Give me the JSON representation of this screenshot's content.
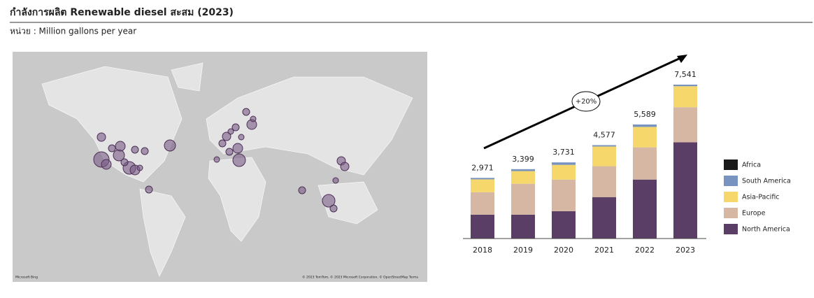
{
  "chart_data": {
    "type": "stacked-bar",
    "title": "กำลังการผลิต Renewable diesel สะสม (2023)",
    "subtitle": "หน่วย : Million gallons per year",
    "map_credits": [
      "Microsoft Bing",
      "© 2023 TomTom, © 2023 Microsoft Corporation, © OpenStreetMap  Terms"
    ],
    "annotation": "+20%",
    "categories": [
      "2018",
      "2019",
      "2020",
      "2021",
      "2022",
      "2023"
    ],
    "series": [
      {
        "name": "North America",
        "color": "#5b3e66",
        "values": [
          1170,
          1170,
          1340,
          2030,
          2890,
          4715
        ]
      },
      {
        "name": "Europe",
        "color": "#d5b7a4",
        "values": [
          1100,
          1515,
          1550,
          1515,
          1580,
          1720
        ]
      },
      {
        "name": "Asia-Pacific",
        "color": "#f5d76b",
        "values": [
          630,
          620,
          720,
          965,
          1000,
          1030
        ]
      },
      {
        "name": "South America",
        "color": "#7893c0",
        "values": [
          71,
          94,
          121,
          67,
          119,
          76
        ]
      },
      {
        "name": "Africa",
        "color": "#1a1a1a",
        "values": [
          0,
          0,
          0,
          0,
          0,
          0
        ]
      }
    ],
    "totals": [
      2971,
      3399,
      3731,
      4577,
      5589,
      7541
    ],
    "total_labels": [
      "2,971",
      "3,399",
      "3,731",
      "4,577",
      "5,589",
      "7,541"
    ],
    "legend": "right"
  }
}
